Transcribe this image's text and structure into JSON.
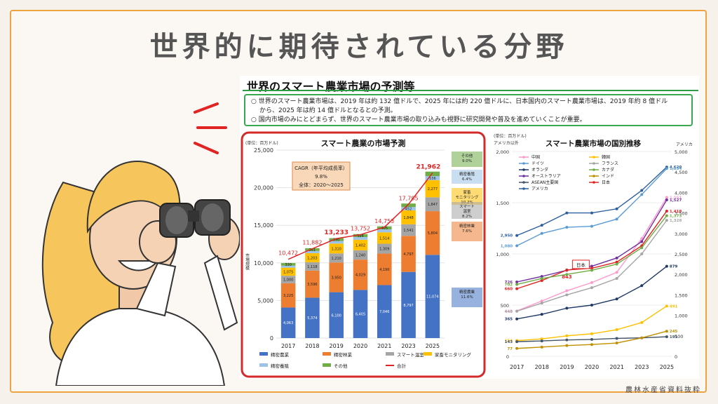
{
  "slide_title": "世界的に期待されている分野",
  "source_note": "農林水産省資料抜粋",
  "subsection_title": "世界のスマート農業市場の予測等",
  "summary_lines": [
    "○ 世界のスマート農業市場は、2019 年は約 132 億ドルで、2025 年には約 220 億ドルに、日本国内のスマート農業市場は、2019 年約 8 億ドル",
    "から、2025 年は約 14 億ドルとなるとの予測。",
    "○ 国内市場のみにとどまらず、世界のスマート農業市場の取り込みも視野に研究開発や普及を進めていくことが重要。"
  ],
  "chart_data": [
    {
      "type": "bar",
      "stacked": true,
      "title": "スマート農業の市場予測",
      "unit_label": "(単位：百万ドル)",
      "ylabel": "市場規模",
      "ylim": [
        0,
        25000
      ],
      "yticks": [
        0,
        5000,
        10000,
        15000,
        20000,
        25000
      ],
      "ytick_labels": [
        "0",
        "5,000",
        "10,000",
        "15,000",
        "20,000",
        "25,000"
      ],
      "categories": [
        "2017",
        "2018",
        "2019",
        "2020",
        "2021",
        "2023",
        "2025"
      ],
      "series": [
        {
          "name": "精密農業",
          "color": "#4472c4",
          "values": [
            4063,
            5374,
            6100,
            6405,
            7046,
            8797,
            11074
          ],
          "labels": [
            "4,063",
            "5,374",
            "6,100",
            "6,405",
            "7,046",
            "8,797",
            "11,074"
          ]
        },
        {
          "name": "精密林業",
          "color": "#ed7d31",
          "values": [
            3225,
            3596,
            3950,
            4029,
            4190,
            4797,
            5804
          ],
          "labels": [
            "3,225",
            "3,596",
            "3,950",
            "4,029",
            "4,190",
            "4,797",
            "5,804"
          ]
        },
        {
          "name": "スマート温室",
          "color": "#a5a5a5",
          "values": [
            1000,
            1118,
            1210,
            1240,
            1309,
            1541,
            1847
          ],
          "labels": [
            "1,000",
            "1,118",
            "1,210",
            "1,240",
            "1,309",
            "1,541",
            "1,847"
          ]
        },
        {
          "name": "家畜モニタリング",
          "color": "#ffc000",
          "values": [
            1075,
            1203,
            1310,
            1402,
            1514,
            1848,
            2277
          ],
          "labels": [
            "1,075",
            "1,203",
            "1,310",
            "1,402",
            "1,514",
            "1,848",
            "2,277"
          ]
        },
        {
          "name": "精密養殖",
          "color": "#9dc3e6",
          "values": [
            280,
            300,
            330,
            360,
            395,
            452,
            536
          ],
          "labels": [
            "",
            "",
            "",
            "",
            "",
            "452",
            "536"
          ]
        },
        {
          "name": "その他",
          "color": "#70ad47",
          "values": [
            330,
            361,
            390,
            394,
            405,
            460,
            600
          ],
          "labels": [
            "330",
            "361",
            "390",
            "394",
            "405",
            "",
            ""
          ]
        }
      ],
      "total": {
        "name": "合計",
        "color": "#e02424",
        "values": [
          10472,
          11882,
          13233,
          13752,
          14753,
          17785,
          21962
        ],
        "labels": [
          "10,472",
          "11,882",
          "13,233",
          "13,752",
          "14,753",
          "17,785",
          "21,962"
        ]
      },
      "cagr_box": {
        "line1": "CAGR（年平均成長率）",
        "line2": "9.8%",
        "line3": "全体：2020～2025"
      },
      "side_labels": [
        {
          "text": "その他\n9.0%",
          "color": "#70ad47"
        },
        {
          "text": "精密養殖\n6.4%",
          "color": "#9dc3e6"
        },
        {
          "text": "家畜\nモニタリング\n10.2%",
          "color": "#ffc000"
        },
        {
          "text": "スマート\n温室\n8.2%",
          "color": "#a5a5a5"
        },
        {
          "text": "精密林業\n7.6%",
          "color": "#ed7d31"
        },
        {
          "text": "精密農業\n11.6%",
          "color": "#4472c4"
        }
      ]
    },
    {
      "type": "line",
      "title": "スマート農業市場の国別推移",
      "unit_label": "(単位：百万ドル)",
      "left_axis_label": "アメリカ以外",
      "right_axis_label": "アメリカ",
      "x": [
        "2017",
        "2018",
        "2019",
        "2020",
        "2021",
        "2023",
        "2025"
      ],
      "ylim_left": [
        0,
        2000
      ],
      "yticks_left": [
        0,
        500,
        1000,
        1500,
        2000
      ],
      "ytick_labels_left": [
        "0",
        "500",
        "1,000",
        "1,500",
        "2,000"
      ],
      "ylim_right": [
        0,
        5000
      ],
      "yticks_right": [
        0,
        500,
        1000,
        1500,
        2000,
        2500,
        3000,
        3500,
        4000,
        4500,
        5000
      ],
      "ytick_labels_right": [
        "0",
        "500",
        "1,000",
        "1,500",
        "2,000",
        "2,500",
        "3,000",
        "3,500",
        "4,000",
        "4,500",
        "5,000"
      ],
      "series": [
        {
          "name": "アメリカ",
          "axis": "right",
          "color": "#2e5f9e",
          "values": [
            2950,
            3200,
            3500,
            3500,
            3600,
            4050,
            4620
          ],
          "start_label": "2,950",
          "end_label": "4,620"
        },
        {
          "name": "ドイツ",
          "axis": "left",
          "color": "#5b9bd5",
          "values": [
            1080,
            1200,
            1260,
            1270,
            1340,
            1580,
            1834
          ],
          "start_label": "1,080",
          "end_label": "1,834"
        },
        {
          "name": "中国",
          "axis": "left",
          "color": "#ff99cc",
          "values": [
            443,
            540,
            640,
            720,
            820,
            1150,
            1551
          ],
          "start_label": "443",
          "end_label": "1,551"
        },
        {
          "name": "フランス",
          "axis": "left",
          "color": "#a5a5a5",
          "values": [
            440,
            520,
            600,
            670,
            760,
            1000,
            1328
          ],
          "start_label": "440",
          "end_label": "1,328"
        },
        {
          "name": "オランダ",
          "axis": "left",
          "color": "#1f3864",
          "values": [
            365,
            410,
            470,
            500,
            560,
            690,
            879
          ],
          "start_label": "365",
          "end_label": "879"
        },
        {
          "name": "オーストラリア",
          "axis": "left",
          "color": "#7030a0",
          "values": [
            726,
            780,
            840,
            880,
            960,
            1120,
            1527
          ],
          "start_label": "726",
          "end_label": "1,527"
        },
        {
          "name": "日本",
          "axis": "left",
          "color": "#e02424",
          "values": [
            660,
            740,
            843,
            860,
            920,
            1080,
            1418
          ],
          "start_label": "660",
          "end_label": "1,418",
          "mid_label": "843"
        },
        {
          "name": "カナダ",
          "axis": "left",
          "color": "#70ad47",
          "values": [
            702,
            760,
            800,
            840,
            900,
            1060,
            1373
          ],
          "start_label": "702",
          "end_label": "1,373"
        },
        {
          "name": "韓国",
          "axis": "left",
          "color": "#ffc000",
          "values": [
            154,
            170,
            200,
            220,
            260,
            330,
            491
          ],
          "start_label": "154",
          "end_label": "491"
        },
        {
          "name": "ASEAN主要国",
          "axis": "left",
          "color": "#44546a",
          "values": [
            143,
            150,
            160,
            165,
            175,
            180,
            191
          ],
          "start_label": "143",
          "end_label": "191"
        },
        {
          "name": "インド",
          "axis": "left",
          "color": "#bf9000",
          "values": [
            77,
            90,
            105,
            115,
            130,
            180,
            245
          ],
          "start_label": "77",
          "end_label": "245"
        }
      ],
      "callout": "日本"
    }
  ]
}
